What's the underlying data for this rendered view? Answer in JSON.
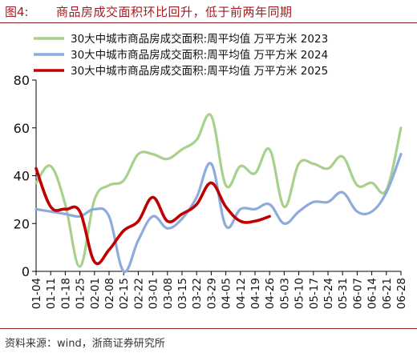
{
  "header": {
    "figure_label": "图4:",
    "title": "商品房成交面积环比回升，低于前两年同期"
  },
  "footer": {
    "source": "资料来源：wind，浙商证券研究所"
  },
  "colors": {
    "title": "#a11d21",
    "rule": "#8a1f1f"
  },
  "chart_data": {
    "type": "line",
    "title": "",
    "xlabel": "",
    "ylabel": "",
    "ylim": [
      0,
      80
    ],
    "yticks": [
      0,
      20,
      40,
      60,
      80
    ],
    "grid": false,
    "legend_position": "top",
    "categories": [
      "01-04",
      "01-11",
      "01-18",
      "01-25",
      "02-01",
      "02-08",
      "02-15",
      "02-22",
      "03-01",
      "03-08",
      "03-15",
      "03-22",
      "03-29",
      "04-05",
      "04-12",
      "04-19",
      "04-26",
      "05-03",
      "05-10",
      "05-17",
      "05-24",
      "05-31",
      "06-07",
      "06-14",
      "06-21",
      "06-28"
    ],
    "series": [
      {
        "name": "30大中城市商品房成交面积:周平均值  万平方米  2023",
        "color": "#a9d18e",
        "values": [
          37,
          44,
          28,
          2,
          30,
          36,
          38,
          49,
          49,
          47,
          51,
          55,
          65,
          36,
          44,
          41,
          51,
          27,
          45,
          45,
          43,
          48,
          36,
          37,
          34,
          60
        ]
      },
      {
        "name": "30大中城市商品房成交面积:周平均值  万平方米  2024",
        "color": "#8faadc",
        "values": [
          26,
          25,
          24,
          23,
          26,
          23,
          0,
          13,
          23,
          18,
          22,
          31,
          45,
          19,
          26,
          26,
          28,
          20,
          25,
          29,
          29,
          33,
          25,
          25,
          33,
          49
        ]
      },
      {
        "name": "30大中城市商品房成交面积:周平均值  万平方米  2025",
        "color": "#c00000",
        "values": [
          43,
          27,
          26,
          25,
          4,
          9,
          17,
          21,
          31,
          21,
          24,
          28,
          37,
          27,
          21,
          21,
          23,
          null,
          null,
          null,
          null,
          null,
          null,
          null,
          null,
          null
        ]
      }
    ]
  }
}
